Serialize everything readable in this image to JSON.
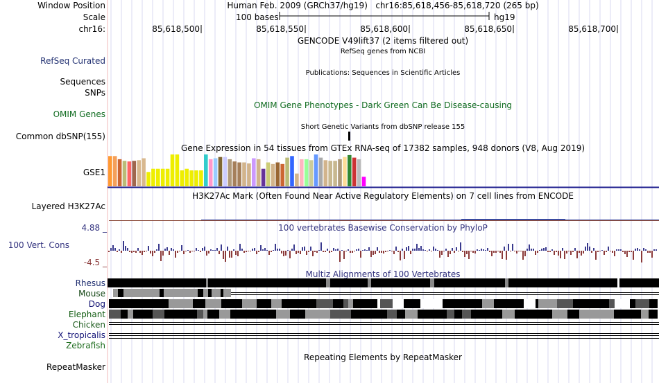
{
  "header": {
    "window_position_label": "Window Position",
    "window_position_value": "Human Feb. 2009 (GRCh37/hg19)   chr16:85,618,456-85,618,720 (265 bp)",
    "scale_label": "Scale",
    "scale_bar_text": "100 bases",
    "scale_assembly": "hg19",
    "chrom_label": "chr16:",
    "ruler_ticks": [
      "85,618,500",
      "85,618,550",
      "85,618,600",
      "85,618,650",
      "85,618,700"
    ]
  },
  "tracks": {
    "gencode_title": "GENCODE V49lift37 (2 items filtered out)",
    "refseq_label": "RefSeq Curated",
    "refseq_title": "RefSeq genes from NCBI",
    "sequences_label": "Sequences",
    "publications_title": "Publications: Sequences in Scientific Articles",
    "snps_label": "SNPs",
    "omim_label": "OMIM Genes",
    "omim_title": "OMIM Gene Phenotypes - Dark Green Can Be Disease-causing",
    "dbsnp_title": "Short Genetic Variants from dbSNP release 155",
    "dbsnp_label": "Common dbSNP(155)",
    "gtex_title": "Gene Expression in 54 tissues from GTEx RNA-seq of 17382 samples, 948 donors (V8, Aug 2019)",
    "gtex_label": "GSE1",
    "gtex_bar_values": [
      0.95,
      0.95,
      0.85,
      0.8,
      0.78,
      0.8,
      0.82,
      0.88,
      0.45,
      0.55,
      0.55,
      0.55,
      0.55,
      1.0,
      1.0,
      0.5,
      0.55,
      0.5,
      0.5,
      0.5,
      1.0,
      0.85,
      0.88,
      0.92,
      0.92,
      0.85,
      0.78,
      0.75,
      0.75,
      0.72,
      0.88,
      0.85,
      0.55,
      0.75,
      0.7,
      0.75,
      0.7,
      0.9,
      0.95,
      0.4,
      0.85,
      0.85,
      0.82,
      1.0,
      0.9,
      0.82,
      0.8,
      0.8,
      0.85,
      0.92,
      0.98,
      0.9,
      0.85,
      0.3
    ],
    "gtex_bar_colors": [
      "#FF9933",
      "#F5A05A",
      "#CC6633",
      "#BBBB77",
      "#FF6666",
      "#A0664D",
      "#D8B88F",
      "#D8B88F",
      "#EEEE00",
      "#EEEE00",
      "#EEEE00",
      "#EEEE00",
      "#EEEE00",
      "#EEEE00",
      "#EEEE00",
      "#EEEE00",
      "#EEEE00",
      "#EEEE00",
      "#EEEE00",
      "#EEEE00",
      "#33CCCC",
      "#FF99CC",
      "#99CCFF",
      "#7F6633",
      "#CCCCFF",
      "#B09A7A",
      "#A57F5A",
      "#A57F5A",
      "#D2B48C",
      "#D2B48C",
      "#CC99FF",
      "#D2B48C",
      "#663399",
      "#CCCC77",
      "#D2B48C",
      "#996633",
      "#CC6633",
      "#BBBB77",
      "#3366FF",
      "#D2B48C",
      "#FFB6C1",
      "#99FF99",
      "#CCCC99",
      "#6699FF",
      "#AAAAAA",
      "#D2B48C",
      "#C8B890",
      "#C8B890",
      "#B09A7A",
      "#FFDD99",
      "#338833",
      "#CC3333",
      "#BBBBBB",
      "#FF00FF"
    ],
    "h3k27ac_label": "Layered H3K27Ac",
    "h3k27ac_title": "H3K27Ac Mark (Often Found Near Active Regulatory Elements) on 7 cell lines from ENCODE",
    "phylop_max": "4.88 _",
    "phylop_min": "-4.5 _",
    "phylop_label": "100 Vert. Cons",
    "phylop_title": "100 vertebrates Basewise Conservation by PhyloP",
    "phylop_positive_color": "#3A3A8E",
    "phylop_negative_color": "#8B3A3A",
    "multiz_title": "Multiz Alignments of 100 Vertebrates",
    "species": [
      "Rhesus",
      "Mouse",
      "Dog",
      "Elephant",
      "Chicken",
      "X_tropicalis",
      "Zebrafish"
    ],
    "repeatmasker_label": "RepeatMasker",
    "repeatmasker_title": "Repeating Elements by RepeatMasker"
  },
  "colors": {
    "refseq": "#1F2E70",
    "omim": "#0F6B1F",
    "phylop": "#33337F",
    "mouse": "#114411",
    "dog": "#0A0A6E",
    "elephant": "#0F5A0F",
    "chicken": "#1C5A1C",
    "xtrop": "#17177A",
    "zebrafish": "#1C6B1C",
    "h3k27ac_line": "#8B4A3A",
    "h3k27ac_line2": "#3A4AA0"
  }
}
